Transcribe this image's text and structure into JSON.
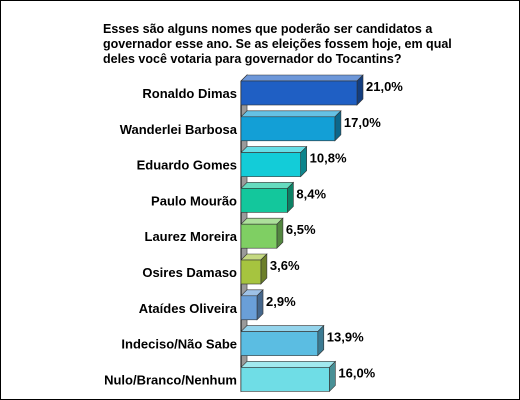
{
  "chart_data": {
    "type": "bar",
    "orientation": "horizontal",
    "title": "Esses são alguns nomes que poderão ser candidatos a\ngovernador esse ano. Se as eleições fossem hoje, em qual\ndeles você votaria para governador do Tocantins?",
    "categories": [
      "Ronaldo Dimas",
      "Wanderlei Barbosa",
      "Eduardo Gomes",
      "Paulo Mourão",
      "Laurez Moreira",
      "Osires Damaso",
      "Ataídes Oliveira",
      "Indeciso/Não Sabe",
      "Nulo/Branco/Nenhum"
    ],
    "values": [
      21.0,
      17.0,
      10.8,
      8.4,
      6.5,
      3.6,
      2.9,
      13.9,
      16.0
    ],
    "value_labels": [
      "21,0%",
      "17,0%",
      "10,8%",
      "8,4%",
      "6,5%",
      "3,6%",
      "2,9%",
      "13,9%",
      "16,0%"
    ],
    "colors": [
      "#1f5fc4",
      "#139fd6",
      "#13ccd8",
      "#13c79c",
      "#7fcf63",
      "#a6c43f",
      "#6a9fd8",
      "#5bbde2",
      "#6fdde6"
    ],
    "xlim": [
      0,
      21.0
    ],
    "grid": false,
    "legend": "none"
  }
}
